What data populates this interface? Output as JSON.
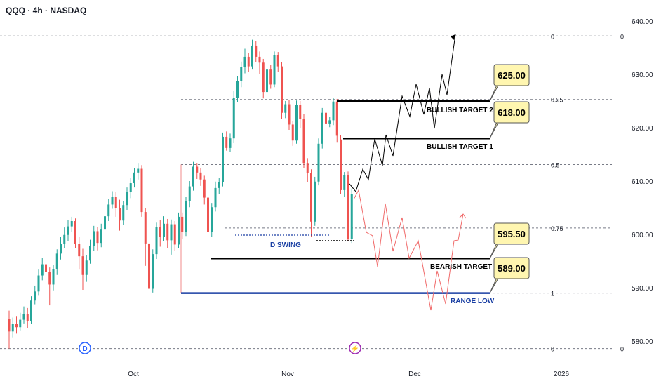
{
  "header": {
    "title": "QQQ · 4h · NASDAQ"
  },
  "chart_data": {
    "type": "candlestick",
    "ylim": [
      578,
      641
    ],
    "y_ticks": [
      "640.00",
      "630.00",
      "620.00",
      "610.00",
      "600.00",
      "590.00",
      "580.00"
    ],
    "y_tick_values": [
      640,
      630,
      620,
      610,
      600,
      590,
      580
    ],
    "x_ticks": [
      "Oct",
      "Nov",
      "Dec",
      "2026"
    ],
    "fib_levels": [
      {
        "label": "0",
        "price": 637.2
      },
      {
        "label": "0.25",
        "price": 625.3
      },
      {
        "label": "0.5",
        "price": 613.1
      },
      {
        "label": "0.75",
        "price": 601.2
      },
      {
        "label": "1",
        "price": 589.0
      },
      {
        "label": "0",
        "price": 578.6
      }
    ],
    "levels": [
      {
        "name": "BULLISH TARGET 2",
        "price": 625.0,
        "price_label": "625.00",
        "color": "#000000"
      },
      {
        "name": "BULLISH TARGET 1",
        "price": 618.0,
        "price_label": "618.00",
        "color": "#000000"
      },
      {
        "name": "BEARISH TARGET 1",
        "price": 595.5,
        "price_label": "595.50",
        "color": "#000000"
      },
      {
        "name": "RANGE LOW",
        "price": 589.0,
        "price_label": "589.00",
        "color": "#1a3fa3"
      }
    ],
    "annotations": {
      "d_swing": "D SWING",
      "d_marker": "D",
      "bolt_marker": "⚡"
    },
    "colors": {
      "up": "#26a69a",
      "down": "#ef5350",
      "bull_path": "#000000",
      "bear_path": "#f06a6a",
      "range": "#1a3fa3",
      "callout_bg": "#fff6b0"
    },
    "candles": [
      [
        584.1,
        581.8,
        585.7,
        578.6
      ],
      [
        581.8,
        583.2,
        584.4,
        580.7
      ],
      [
        583.2,
        582.6,
        584.7,
        581.4
      ],
      [
        582.6,
        584.0,
        585.3,
        582.0
      ],
      [
        584.0,
        585.1,
        586.5,
        583.3
      ],
      [
        585.1,
        583.7,
        586.2,
        582.5
      ],
      [
        583.7,
        587.6,
        588.4,
        583.2
      ],
      [
        587.6,
        589.3,
        590.4,
        586.9
      ],
      [
        589.3,
        592.3,
        593.4,
        588.5
      ],
      [
        592.3,
        594.4,
        595.6,
        591.4
      ],
      [
        594.4,
        592.9,
        595.5,
        591.9
      ],
      [
        592.9,
        590.6,
        593.8,
        586.7
      ],
      [
        590.6,
        593.5,
        594.3,
        589.5
      ],
      [
        593.5,
        596.4,
        597.2,
        592.4
      ],
      [
        596.4,
        598.2,
        599.5,
        595.3
      ],
      [
        598.2,
        599.9,
        601.3,
        597.4
      ],
      [
        599.9,
        601.5,
        602.7,
        598.8
      ],
      [
        601.5,
        602.5,
        603.3,
        600.4
      ],
      [
        602.5,
        598.2,
        603.0,
        597.4
      ],
      [
        598.2,
        595.9,
        599.6,
        593.4
      ],
      [
        595.9,
        592.4,
        597.3,
        589.6
      ],
      [
        592.4,
        595.1,
        596.1,
        591.1
      ],
      [
        595.1,
        597.9,
        599.0,
        594.5
      ],
      [
        597.9,
        600.6,
        601.6,
        596.9
      ],
      [
        600.6,
        598.4,
        601.4,
        597.0
      ],
      [
        598.4,
        600.9,
        602.0,
        597.6
      ],
      [
        600.9,
        603.4,
        604.5,
        600.1
      ],
      [
        603.4,
        605.6,
        606.7,
        602.5
      ],
      [
        605.6,
        607.1,
        608.1,
        604.8
      ],
      [
        607.1,
        605.0,
        607.9,
        603.3
      ],
      [
        605.0,
        602.6,
        606.5,
        600.7
      ],
      [
        602.6,
        605.5,
        606.3,
        601.8
      ],
      [
        605.5,
        608.0,
        608.8,
        604.6
      ],
      [
        608.0,
        609.6,
        610.6,
        606.8
      ],
      [
        609.6,
        611.6,
        612.4,
        608.8
      ],
      [
        611.6,
        612.3,
        613.4,
        610.3
      ],
      [
        612.3,
        604.2,
        613.0,
        603.3
      ],
      [
        604.2,
        598.3,
        605.0,
        594.1
      ],
      [
        598.3,
        589.8,
        599.6,
        588.6
      ],
      [
        589.8,
        596.3,
        597.2,
        589.1
      ],
      [
        596.3,
        601.4,
        602.2,
        595.4
      ],
      [
        601.4,
        599.5,
        602.7,
        597.7
      ],
      [
        599.5,
        602.0,
        603.4,
        598.7
      ],
      [
        602.0,
        598.9,
        602.9,
        597.4
      ],
      [
        598.9,
        601.9,
        602.8,
        596.2
      ],
      [
        601.9,
        598.1,
        602.5,
        596.9
      ],
      [
        598.1,
        603.3,
        604.1,
        597.4
      ],
      [
        603.3,
        600.5,
        604.1,
        599.2
      ],
      [
        600.5,
        606.3,
        607.0,
        599.7
      ],
      [
        606.3,
        609.0,
        610.0,
        605.1
      ],
      [
        609.0,
        612.7,
        613.6,
        608.2
      ],
      [
        612.7,
        611.6,
        613.4,
        610.4
      ],
      [
        611.6,
        610.3,
        612.5,
        609.1
      ],
      [
        610.3,
        606.9,
        611.0,
        605.6
      ],
      [
        606.9,
        600.4,
        607.6,
        599.3
      ],
      [
        600.4,
        605.1,
        605.9,
        599.6
      ],
      [
        605.1,
        608.7,
        609.9,
        604.3
      ],
      [
        608.7,
        609.8,
        610.6,
        607.6
      ],
      [
        609.8,
        618.3,
        619.1,
        609.0
      ],
      [
        618.3,
        616.2,
        619.3,
        615.7
      ],
      [
        616.2,
        618.0,
        618.9,
        615.4
      ],
      [
        618.0,
        625.6,
        626.9,
        617.1
      ],
      [
        625.6,
        628.7,
        629.7,
        624.8
      ],
      [
        628.7,
        631.4,
        632.4,
        627.6
      ],
      [
        631.4,
        633.3,
        634.8,
        630.2
      ],
      [
        633.3,
        631.5,
        634.0,
        630.5
      ],
      [
        631.5,
        635.4,
        636.5,
        630.9
      ],
      [
        635.4,
        633.3,
        636.2,
        632.3
      ],
      [
        633.3,
        632.2,
        634.3,
        630.1
      ],
      [
        632.2,
        626.7,
        632.9,
        625.5
      ],
      [
        626.7,
        630.9,
        631.7,
        625.7
      ],
      [
        630.9,
        628.1,
        631.8,
        627.3
      ],
      [
        628.1,
        633.6,
        634.3,
        627.6
      ],
      [
        633.6,
        631.5,
        634.2,
        630.4
      ],
      [
        631.5,
        622.8,
        632.3,
        621.6
      ],
      [
        622.8,
        624.4,
        625.0,
        621.8
      ],
      [
        624.4,
        620.6,
        625.2,
        619.6
      ],
      [
        620.6,
        617.6,
        621.3,
        616.6
      ],
      [
        617.6,
        624.3,
        625.1,
        617.0
      ],
      [
        624.3,
        621.6,
        625.0,
        619.9
      ],
      [
        621.6,
        613.4,
        622.6,
        612.5
      ],
      [
        613.4,
        611.5,
        614.3,
        609.8
      ],
      [
        611.5,
        602.4,
        612.2,
        599.6
      ],
      [
        602.4,
        609.9,
        610.8,
        601.6
      ],
      [
        609.9,
        617.0,
        618.0,
        609.2
      ],
      [
        617.0,
        622.8,
        623.7,
        616.1
      ],
      [
        622.8,
        620.8,
        623.7,
        619.6
      ],
      [
        620.8,
        621.4,
        622.1,
        620.1
      ],
      [
        621.4,
        624.9,
        625.6,
        620.5
      ],
      [
        624.9,
        618.5,
        625.4,
        617.2
      ],
      [
        617.8,
        608.3,
        618.6,
        607.5
      ],
      [
        608.3,
        611.1,
        611.7,
        607.1
      ],
      [
        611.1,
        599.1,
        611.8,
        598.7
      ],
      [
        599.1,
        607.6,
        608.6,
        598.4
      ]
    ],
    "bull_path": [
      [
        498,
        262
      ],
      [
        507,
        273
      ],
      [
        517,
        241
      ],
      [
        525,
        256
      ],
      [
        534,
        198
      ],
      [
        545,
        236
      ],
      [
        550,
        192
      ],
      [
        560,
        222
      ],
      [
        573,
        137
      ],
      [
        584,
        166
      ],
      [
        593,
        120
      ],
      [
        604,
        163
      ],
      [
        612,
        125
      ],
      [
        619,
        183
      ],
      [
        630,
        106
      ],
      [
        637,
        135
      ],
      [
        649,
        49
      ]
    ],
    "bear_path": [
      [
        504,
        284
      ],
      [
        511,
        271
      ],
      [
        522,
        331
      ],
      [
        531,
        336
      ],
      [
        538,
        380
      ],
      [
        549,
        290
      ],
      [
        560,
        358
      ],
      [
        573,
        310
      ],
      [
        583,
        368
      ],
      [
        596,
        343
      ],
      [
        614,
        442
      ],
      [
        623,
        386
      ],
      [
        635,
        433
      ],
      [
        647,
        343
      ],
      [
        653,
        342
      ],
      [
        660,
        305
      ]
    ]
  }
}
